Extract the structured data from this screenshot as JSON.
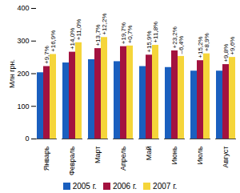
{
  "chart_data": {
    "type": "bar",
    "y_label": "Млн грн.",
    "categories": [
      "Январь",
      "Февраль",
      "Март",
      "Апрель",
      "Май",
      "Июнь",
      "Июль",
      "Август"
    ],
    "series": [
      {
        "name": "2005 г.",
        "color": "#1a5fbf",
        "values": [
          203,
          233,
          243,
          237,
          222,
          219,
          208,
          208
        ]
      },
      {
        "name": "2006 г.",
        "color": "#a3123f",
        "values": [
          222,
          266,
          277,
          283,
          257,
          270,
          240,
          228
        ],
        "annotations": [
          "+9,7%",
          "+14,0%",
          "+13,7%",
          "+19,7%",
          "+15,9%",
          "+23,2%",
          "+15,2%",
          "+9,8%"
        ]
      },
      {
        "name": "2007 г.",
        "color": "#f5d53a",
        "values": [
          259,
          295,
          311,
          285,
          287,
          253,
          261,
          250
        ],
        "annotations": [
          "+16,9%",
          "+11,0%",
          "+12,2%",
          "+0,7%",
          "+11,8%",
          "–6,4%",
          "+8,9%",
          "+9,6%"
        ]
      }
    ],
    "ylim": [
      0,
      400
    ],
    "yticks": [
      0,
      100,
      200,
      300,
      400
    ],
    "grid": false
  }
}
